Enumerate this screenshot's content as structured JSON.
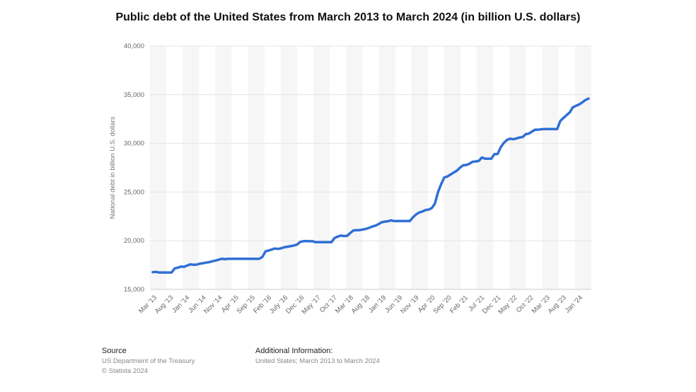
{
  "footer": {
    "source_heading": "Source",
    "source_line1": "US Department of the Treasury",
    "source_line2": "© Statista 2024",
    "info_heading": "Additional Information:",
    "info_line1": "United States; March 2013 to March 2024"
  },
  "chart_data": {
    "type": "line",
    "title": "Public debt of the United States from March 2013 to March 2024 (in billion U.S. dollars)",
    "xlabel": "",
    "ylabel": "National debt in billion U.S. dollars",
    "ylim": [
      15000,
      40000
    ],
    "yticks": [
      "15,000",
      "20,000",
      "25,000",
      "30,000",
      "35,000",
      "40,000"
    ],
    "grid": true,
    "x_tick_labels": [
      "Mar '13",
      "Aug '13",
      "Jan '14",
      "Jun '14",
      "Nov '14",
      "Apr '15",
      "Sep '15",
      "Feb '16",
      "July '16",
      "Dec '16",
      "May '17",
      "Oct '17",
      "Mar '18",
      "Aug '18",
      "Jan '19",
      "Jun '19",
      "Nov '19",
      "Apr '20",
      "Sep '20",
      "Feb '21",
      "Jul '21",
      "Dec '21",
      "May '22",
      "Oct '22",
      "Mar '23",
      "Aug '23",
      "Jan '24"
    ],
    "line_color": "#2f6fd6",
    "series": [
      {
        "values": [
          16770,
          16800,
          16740,
          16740,
          16740,
          16740,
          16740,
          17160,
          17230,
          17350,
          17320,
          17460,
          17570,
          17530,
          17540,
          17640,
          17690,
          17750,
          17800,
          17890,
          17960,
          18050,
          18150,
          18110,
          18150,
          18150,
          18150,
          18150,
          18150,
          18150,
          18150,
          18150,
          18150,
          18150,
          18150,
          18350,
          18920,
          19000,
          19100,
          19200,
          19160,
          19230,
          19330,
          19390,
          19440,
          19510,
          19600,
          19880,
          19950,
          19970,
          19950,
          19950,
          19850,
          19850,
          19850,
          19850,
          19850,
          19850,
          20280,
          20420,
          20530,
          20480,
          20500,
          20800,
          21050,
          21080,
          21090,
          21150,
          21220,
          21320,
          21450,
          21550,
          21700,
          21900,
          21960,
          22000,
          22090,
          22020,
          22020,
          22020,
          22020,
          22020,
          22020,
          22400,
          22700,
          22900,
          23000,
          23150,
          23200,
          23350,
          23800,
          25000,
          25800,
          26500,
          26600,
          26800,
          27000,
          27200,
          27500,
          27750,
          27780,
          27900,
          28100,
          28150,
          28200,
          28550,
          28430,
          28430,
          28430,
          28900,
          28900,
          29600,
          30050,
          30350,
          30480,
          30420,
          30500,
          30600,
          30650,
          30950,
          31000,
          31220,
          31400,
          31400,
          31450,
          31470,
          31470,
          31470,
          31470,
          31460,
          32300,
          32600,
          32900,
          33170,
          33700,
          33850,
          34000,
          34200,
          34450,
          34600
        ]
      }
    ]
  }
}
